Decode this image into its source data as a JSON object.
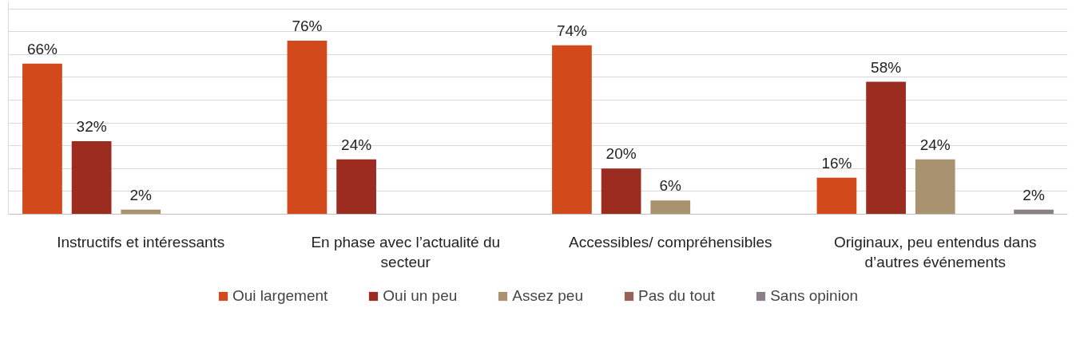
{
  "chart_data": {
    "type": "bar",
    "categories": [
      "Instructifs et intéressants",
      "En phase avec l’actualité du secteur",
      "Accessibles/ compréhensibles",
      "Originaux, peu entendus dans d’autres événements"
    ],
    "series": [
      {
        "name": "Oui largement",
        "color": "#d24a1b",
        "values": [
          66,
          76,
          74,
          16
        ],
        "value_labels": [
          "66%",
          "76%",
          "74%",
          "16%"
        ]
      },
      {
        "name": "Oui un peu",
        "color": "#9c2b20",
        "values": [
          32,
          24,
          20,
          58
        ],
        "value_labels": [
          "32%",
          "24%",
          "20%",
          "58%"
        ]
      },
      {
        "name": "Assez peu",
        "color": "#a89270",
        "values": [
          2,
          null,
          6,
          24
        ],
        "value_labels": [
          "2%",
          null,
          "6%",
          "24%"
        ]
      },
      {
        "name": "Pas du tout",
        "color": "#9a6158",
        "values": [
          null,
          null,
          null,
          null
        ]
      },
      {
        "name": "Sans opinion",
        "color": "#8c8088",
        "values": [
          null,
          null,
          null,
          2
        ],
        "value_labels": [
          null,
          null,
          null,
          "2%"
        ]
      }
    ],
    "ylim": [
      0,
      93
    ],
    "yticks": [
      {
        "value": 0,
        "label": null
      },
      {
        "value": 10,
        "label": null
      },
      {
        "value": 20,
        "label": null
      },
      {
        "value": 30,
        "label": null
      },
      {
        "value": 40,
        "label": null
      },
      {
        "value": 50,
        "label": null
      },
      {
        "value": 60,
        "label": null
      },
      {
        "value": 70,
        "label": null
      },
      {
        "value": 80,
        "label": null
      },
      {
        "value": 90,
        "label": null
      }
    ],
    "grid": "y",
    "tick_labels": "x",
    "legend": "bottom"
  }
}
